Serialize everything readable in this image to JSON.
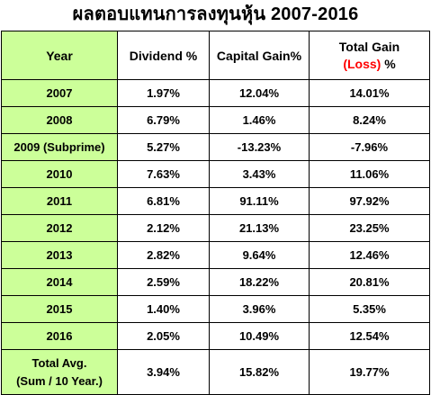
{
  "title": "ผลตอบแทนการลงทุนหุ้น  2007-2016",
  "headers": {
    "year": "Year",
    "dividend": "Dividend %",
    "capital_gain": "Capital Gain%",
    "total_gain_line1": "Total Gain",
    "total_gain_loss": "(Loss)",
    "total_gain_pct": " %"
  },
  "rows": [
    {
      "year": "2007",
      "dividend": "1.97%",
      "capital_gain": "12.04%",
      "total": "14.01%"
    },
    {
      "year": "2008",
      "dividend": "6.79%",
      "capital_gain": "1.46%",
      "total": "8.24%"
    },
    {
      "year": "2009 (Subprime)",
      "dividend": "5.27%",
      "capital_gain": "-13.23%",
      "total": "-7.96%"
    },
    {
      "year": "2010",
      "dividend": "7.63%",
      "capital_gain": "3.43%",
      "total": "11.06%"
    },
    {
      "year": "2011",
      "dividend": "6.81%",
      "capital_gain": "91.11%",
      "total": "97.92%"
    },
    {
      "year": "2012",
      "dividend": "2.12%",
      "capital_gain": "21.13%",
      "total": "23.25%"
    },
    {
      "year": "2013",
      "dividend": "2.82%",
      "capital_gain": "9.64%",
      "total": "12.46%"
    },
    {
      "year": "2014",
      "dividend": "2.59%",
      "capital_gain": "18.22%",
      "total": "20.81%"
    },
    {
      "year": "2015",
      "dividend": "1.40%",
      "capital_gain": "3.96%",
      "total": "5.35%"
    },
    {
      "year": "2016",
      "dividend": "2.05%",
      "capital_gain": "10.49%",
      "total": "12.54%"
    }
  ],
  "average": {
    "label_line1": "Total Avg.",
    "label_line2": "(Sum / 10 Year.)",
    "dividend": "3.94%",
    "capital_gain": "15.82%",
    "total": "19.77%"
  },
  "colors": {
    "label_fill": "#ccff99",
    "negative": "#ff0000"
  }
}
